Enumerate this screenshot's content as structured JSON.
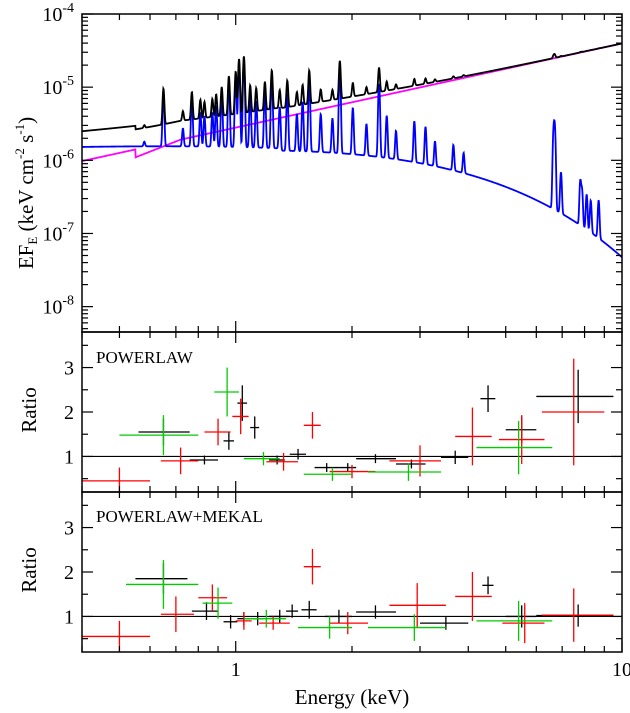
{
  "chart_data": [
    {
      "type": "line",
      "panel": "spectrum",
      "xscale": "log",
      "yscale": "log",
      "xlim": [
        0.4,
        10
      ],
      "ylim": [
        4.5e-09,
        0.0001
      ],
      "ylabel_parts": [
        "EF",
        "E",
        " (keV cm",
        "-2",
        " s",
        "-1",
        ")"
      ],
      "yticks": [
        {
          "value": 1e-08,
          "base": "10",
          "exp": "-8"
        },
        {
          "value": 1e-07,
          "base": "10",
          "exp": "-7"
        },
        {
          "value": 1e-06,
          "base": "10",
          "exp": "-6"
        },
        {
          "value": 1e-05,
          "base": "10",
          "exp": "-5"
        },
        {
          "value": 0.0001,
          "base": "10",
          "exp": "-4"
        }
      ],
      "colors": {
        "total": "#000000",
        "mekal": "#0000ff",
        "powerlaw": "#ff00ff"
      },
      "powerlaw": {
        "norm_at_1keV": 2.8e-06,
        "photon_index": 0.85,
        "absorption_dip": [
          0.55,
          0.72
        ]
      },
      "mekal": {
        "kT": 1.9,
        "continuum_norm": 1.35e-06
      },
      "lines": [
        [
          0.58,
          2.5e-07
        ],
        [
          0.65,
          6.5e-06
        ],
        [
          0.73,
          1.2e-06
        ],
        [
          0.77,
          5e-06
        ],
        [
          0.81,
          3e-06
        ],
        [
          0.83,
          2.5e-06
        ],
        [
          0.87,
          3e-06
        ],
        [
          0.89,
          4e-06
        ],
        [
          0.92,
          6e-06
        ],
        [
          0.96,
          1e-05
        ],
        [
          1.0,
          1.2e-05
        ],
        [
          1.02,
          2e-05
        ],
        [
          1.05,
          2.2e-05
        ],
        [
          1.09,
          6e-06
        ],
        [
          1.13,
          5e-06
        ],
        [
          1.19,
          7e-06
        ],
        [
          1.24,
          1.2e-05
        ],
        [
          1.3,
          4e-06
        ],
        [
          1.36,
          7e-06
        ],
        [
          1.44,
          3e-06
        ],
        [
          1.49,
          5e-06
        ],
        [
          1.55,
          1.1e-05
        ],
        [
          1.66,
          3e-06
        ],
        [
          1.78,
          2.5e-06
        ],
        [
          1.86,
          1.6e-05
        ],
        [
          2.01,
          4e-06
        ],
        [
          2.18,
          2e-06
        ],
        [
          2.35,
          1e-05
        ],
        [
          2.46,
          3e-06
        ],
        [
          2.6,
          1.5e-06
        ],
        [
          2.9,
          2.5e-06
        ],
        [
          3.1,
          2e-06
        ],
        [
          3.28,
          1e-06
        ],
        [
          3.66,
          9e-07
        ],
        [
          3.89,
          6e-07
        ],
        [
          6.65,
          2.2e-06
        ],
        [
          6.7,
          2.5e-06
        ],
        [
          6.95,
          5e-07
        ],
        [
          7.8,
          4e-07
        ],
        [
          7.88,
          2.7e-07
        ],
        [
          8.1,
          2.3e-07
        ],
        [
          8.3,
          1.8e-07
        ],
        [
          8.7,
          2e-07
        ]
      ]
    },
    {
      "type": "scatter",
      "panel": "ratio-1",
      "label": "POWERLAW",
      "ylabel": "Ratio",
      "xscale": "log",
      "xlim": [
        0.4,
        10
      ],
      "ylim": [
        0.2,
        3.8
      ],
      "yticks": [
        "1",
        "2",
        "3"
      ],
      "reference_line": 1,
      "series": [
        {
          "color": "#000000",
          "points": [
            [
              0.65,
              1.55,
              0.56,
              0.76,
              0.3
            ],
            [
              0.83,
              0.92,
              0.76,
              0.9,
              0.1
            ],
            [
              0.96,
              1.35,
              0.93,
              0.99,
              0.2
            ],
            [
              1.04,
              2.2,
              1.01,
              1.07,
              0.4
            ],
            [
              1.12,
              1.65,
              1.09,
              1.15,
              0.25
            ],
            [
              1.28,
              0.92,
              1.22,
              1.34,
              0.1
            ],
            [
              1.45,
              1.05,
              1.38,
              1.52,
              0.12
            ],
            [
              1.72,
              0.75,
              1.6,
              1.85,
              0.1
            ],
            [
              1.95,
              0.75,
              1.85,
              2.05,
              0.1
            ],
            [
              2.3,
              0.95,
              2.05,
              2.6,
              0.1
            ],
            [
              2.85,
              0.83,
              2.6,
              3.1,
              0.1
            ],
            [
              3.7,
              0.98,
              3.4,
              4.0,
              0.15
            ],
            [
              4.5,
              2.3,
              4.3,
              4.7,
              0.3
            ],
            [
              5.5,
              1.6,
              5.0,
              6.0,
              0.3
            ],
            [
              7.7,
              2.35,
              6.0,
              9.5,
              0.6
            ]
          ]
        },
        {
          "color": "#ff0000",
          "points": [
            [
              0.5,
              0.45,
              0.4,
              0.6,
              0.3
            ],
            [
              0.72,
              0.9,
              0.64,
              0.8,
              0.3
            ],
            [
              0.9,
              1.55,
              0.83,
              0.97,
              0.3
            ],
            [
              1.03,
              1.9,
              0.98,
              1.08,
              0.4
            ],
            [
              1.33,
              0.88,
              1.2,
              1.45,
              0.2
            ],
            [
              1.58,
              1.7,
              1.5,
              1.66,
              0.3
            ],
            [
              2.0,
              0.66,
              1.75,
              2.3,
              0.15
            ],
            [
              3.0,
              0.9,
              2.5,
              3.4,
              0.35
            ],
            [
              4.1,
              1.45,
              3.7,
              4.6,
              0.65
            ],
            [
              5.5,
              1.38,
              4.8,
              6.3,
              0.55
            ],
            [
              7.5,
              2.0,
              6.2,
              9.0,
              1.2
            ]
          ]
        },
        {
          "color": "#00cc00",
          "points": [
            [
              0.65,
              1.48,
              0.5,
              0.8,
              0.45
            ],
            [
              0.95,
              2.45,
              0.88,
              1.02,
              0.55
            ],
            [
              1.18,
              0.95,
              1.05,
              1.3,
              0.15
            ],
            [
              1.78,
              0.6,
              1.5,
              2.0,
              0.15
            ],
            [
              2.8,
              0.65,
              2.2,
              3.4,
              0.2
            ],
            [
              5.4,
              1.2,
              4.2,
              6.6,
              0.6
            ]
          ]
        }
      ]
    },
    {
      "type": "scatter",
      "panel": "ratio-2",
      "label": "POWERLAW+MEKAL",
      "ylabel": "Ratio",
      "xscale": "log",
      "xlim": [
        0.4,
        10
      ],
      "ylim": [
        0.2,
        3.8
      ],
      "yticks": [
        "1",
        "2",
        "3"
      ],
      "reference_line": 1,
      "series": [
        {
          "color": "#000000",
          "points": [
            [
              0.65,
              1.85,
              0.55,
              0.75,
              0.35
            ],
            [
              0.84,
              1.12,
              0.77,
              0.9,
              0.2
            ],
            [
              0.97,
              0.88,
              0.93,
              1.01,
              0.15
            ],
            [
              1.05,
              0.95,
              1.01,
              1.09,
              0.15
            ],
            [
              1.14,
              0.95,
              1.1,
              1.18,
              0.15
            ],
            [
              1.3,
              1.0,
              1.22,
              1.38,
              0.15
            ],
            [
              1.4,
              1.12,
              1.35,
              1.45,
              0.15
            ],
            [
              1.55,
              1.15,
              1.48,
              1.62,
              0.2
            ],
            [
              1.85,
              1.0,
              1.7,
              2.0,
              0.15
            ],
            [
              2.3,
              1.1,
              2.05,
              2.6,
              0.15
            ],
            [
              3.5,
              0.85,
              3.0,
              4.0,
              0.15
            ],
            [
              4.5,
              1.7,
              4.35,
              4.65,
              0.2
            ],
            [
              5.5,
              1.0,
              5.0,
              6.0,
              0.25
            ],
            [
              7.7,
              1.02,
              6.0,
              9.5,
              0.25
            ]
          ]
        },
        {
          "color": "#ff0000",
          "points": [
            [
              0.5,
              0.55,
              0.4,
              0.6,
              0.35
            ],
            [
              0.7,
              1.05,
              0.64,
              0.78,
              0.4
            ],
            [
              0.87,
              1.42,
              0.8,
              0.95,
              0.3
            ],
            [
              1.05,
              0.9,
              1.0,
              1.1,
              0.2
            ],
            [
              1.25,
              0.85,
              1.15,
              1.38,
              0.15
            ],
            [
              1.58,
              2.12,
              1.5,
              1.66,
              0.4
            ],
            [
              1.95,
              0.85,
              1.75,
              2.2,
              0.25
            ],
            [
              2.95,
              1.25,
              2.5,
              3.5,
              0.5
            ],
            [
              4.1,
              1.45,
              3.7,
              4.6,
              0.55
            ],
            [
              5.6,
              0.85,
              4.9,
              6.3,
              0.45
            ],
            [
              7.5,
              1.03,
              6.2,
              9.5,
              0.6
            ]
          ]
        },
        {
          "color": "#00cc00",
          "points": [
            [
              0.65,
              1.72,
              0.52,
              0.8,
              0.55
            ],
            [
              0.9,
              1.3,
              0.82,
              0.98,
              0.35
            ],
            [
              1.2,
              0.95,
              1.05,
              1.35,
              0.2
            ],
            [
              1.75,
              0.75,
              1.45,
              2.0,
              0.25
            ],
            [
              2.9,
              0.75,
              2.2,
              3.5,
              0.3
            ],
            [
              5.4,
              0.9,
              4.2,
              6.6,
              0.45
            ]
          ]
        }
      ]
    }
  ],
  "x_axis": {
    "label": "Energy (keV)",
    "ticks": [
      {
        "value": 1,
        "label": "1"
      },
      {
        "value": 10,
        "label": "10"
      }
    ]
  }
}
